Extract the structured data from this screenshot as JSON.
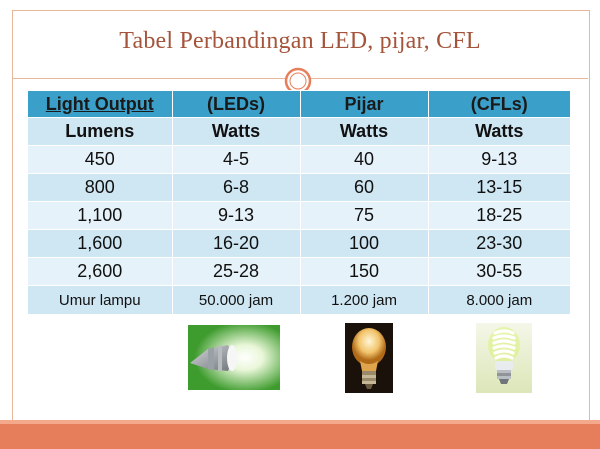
{
  "slide": {
    "title": "Tabel Perbandingan LED, pijar, CFL"
  },
  "table": {
    "header": [
      "Light Output",
      "(LEDs)",
      "Pijar",
      "(CFLs)"
    ],
    "subheader": [
      "Lumens",
      "Watts",
      "Watts",
      "Watts"
    ],
    "rows": [
      [
        "450",
        "4-5",
        "40",
        "9-13"
      ],
      [
        "800",
        "6-8",
        "60",
        "13-15"
      ],
      [
        "1,100",
        "9-13",
        "75",
        "18-25"
      ],
      [
        "1,600",
        "16-20",
        "100",
        "23-30"
      ],
      [
        "2,600",
        "25-28",
        "150",
        "30-55"
      ],
      [
        "Umur lampu",
        "50.000 jam",
        "1.200 jam",
        "8.000 jam"
      ]
    ]
  },
  "colors": {
    "header_bg": "#3aa0c9",
    "row_light": "#e6f2f9",
    "row_dark": "#cfe6f3",
    "title_color": "#a4543b",
    "accent_bar": "#e67e5b"
  },
  "images": [
    {
      "name": "led-bulb",
      "description_icon": "led-bulb-icon"
    },
    {
      "name": "incandescent-bulb",
      "description_icon": "incandescent-bulb-icon"
    },
    {
      "name": "cfl-bulb",
      "description_icon": "cfl-bulb-icon"
    }
  ]
}
